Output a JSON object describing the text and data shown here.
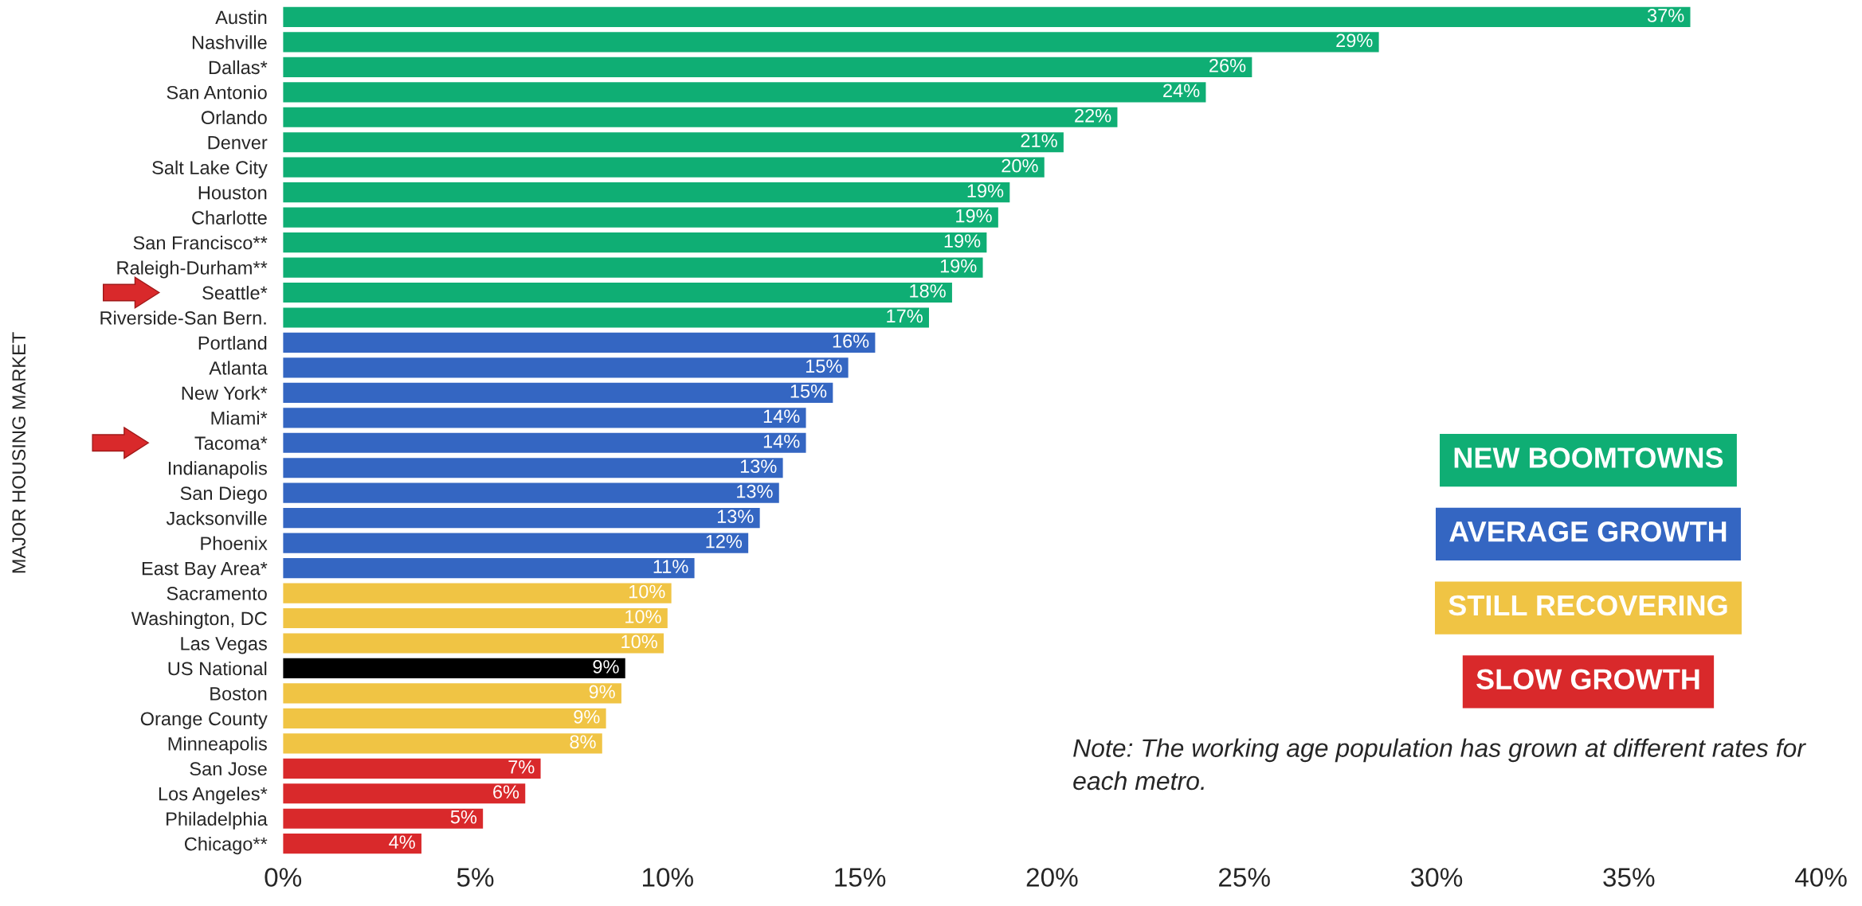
{
  "chart_data": {
    "type": "bar",
    "orientation": "horizontal",
    "ylabel": "MAJOR HOUSING MARKET",
    "categories": [
      "Austin",
      "Nashville",
      "Dallas*",
      "San Antonio",
      "Orlando",
      "Denver",
      "Salt Lake City",
      "Houston",
      "Charlotte",
      "San Francisco**",
      "Raleigh-Durham**",
      "Seattle*",
      "Riverside-San Bern.",
      "Portland",
      "Atlanta",
      "New York*",
      "Miami*",
      "Tacoma*",
      "Indianapolis",
      "San Diego",
      "Jacksonville",
      "Phoenix",
      "East Bay Area*",
      "Sacramento",
      "Washington, DC",
      "Las Vegas",
      "US National",
      "Boston",
      "Orange County",
      "Minneapolis",
      "San Jose",
      "Los Angeles*",
      "Philadelphia",
      "Chicago**"
    ],
    "series": [
      {
        "name": "NEW BOOMTOWNS",
        "color": "#0fae74",
        "values": [
          36.6,
          28.5,
          25.2,
          24.0,
          21.7,
          20.3,
          19.8,
          18.9,
          18.6,
          18.3,
          18.2,
          17.4,
          16.8,
          null,
          null,
          null,
          null,
          null,
          null,
          null,
          null,
          null,
          null,
          null,
          null,
          null,
          null,
          null,
          null,
          null,
          null,
          null,
          null,
          null
        ]
      },
      {
        "name": "AVERAGE GROWTH",
        "color": "#3466c2",
        "values": [
          null,
          null,
          null,
          null,
          null,
          null,
          null,
          null,
          null,
          null,
          null,
          null,
          null,
          15.4,
          14.7,
          14.3,
          13.6,
          13.6,
          13.0,
          12.9,
          12.4,
          12.1,
          10.7,
          null,
          null,
          null,
          null,
          null,
          null,
          null,
          null,
          null,
          null,
          null
        ]
      },
      {
        "name": "STILL RECOVERING",
        "color": "#f0c444",
        "values": [
          null,
          null,
          null,
          null,
          null,
          null,
          null,
          null,
          null,
          null,
          null,
          null,
          null,
          null,
          null,
          null,
          null,
          null,
          null,
          null,
          null,
          null,
          null,
          10.1,
          10.0,
          9.9,
          null,
          8.8,
          8.4,
          8.3,
          null,
          null,
          null,
          null
        ]
      },
      {
        "color": "#000000",
        "values": [
          null,
          null,
          null,
          null,
          null,
          null,
          null,
          null,
          null,
          null,
          null,
          null,
          null,
          null,
          null,
          null,
          null,
          null,
          null,
          null,
          null,
          null,
          null,
          null,
          null,
          null,
          8.9,
          null,
          null,
          null,
          null,
          null,
          null,
          null
        ]
      },
      {
        "name": "SLOW GROWTH",
        "color": "#d9292b",
        "values": [
          null,
          null,
          null,
          null,
          null,
          null,
          null,
          null,
          null,
          null,
          null,
          null,
          null,
          null,
          null,
          null,
          null,
          null,
          null,
          null,
          null,
          null,
          null,
          null,
          null,
          null,
          null,
          null,
          null,
          null,
          6.7,
          6.3,
          5.2,
          3.6
        ]
      }
    ],
    "value_labels": [
      "37%",
      "29%",
      "26%",
      "24%",
      "22%",
      "21%",
      "20%",
      "19%",
      "19%",
      "19%",
      "19%",
      "18%",
      "17%",
      "16%",
      "15%",
      "15%",
      "14%",
      "14%",
      "13%",
      "13%",
      "13%",
      "12%",
      "11%",
      "10%",
      "10%",
      "10%",
      "9%",
      "9%",
      "9%",
      "8%",
      "7%",
      "6%",
      "5%",
      "4%"
    ],
    "xlim": [
      0,
      40
    ],
    "xticks": [
      {
        "value": 0,
        "label": "0%"
      },
      {
        "value": 5,
        "label": "5%"
      },
      {
        "value": 10,
        "label": "10%"
      },
      {
        "value": 15,
        "label": "15%"
      },
      {
        "value": 20,
        "label": "20%"
      },
      {
        "value": 25,
        "label": "25%"
      },
      {
        "value": 30,
        "label": "30%"
      },
      {
        "value": 35,
        "label": "35%"
      },
      {
        "value": 40,
        "label": "40%"
      }
    ],
    "legend": "right",
    "grid": false,
    "annotations": [
      "Note: The working age population has grown at different rates for each metro."
    ]
  }
}
